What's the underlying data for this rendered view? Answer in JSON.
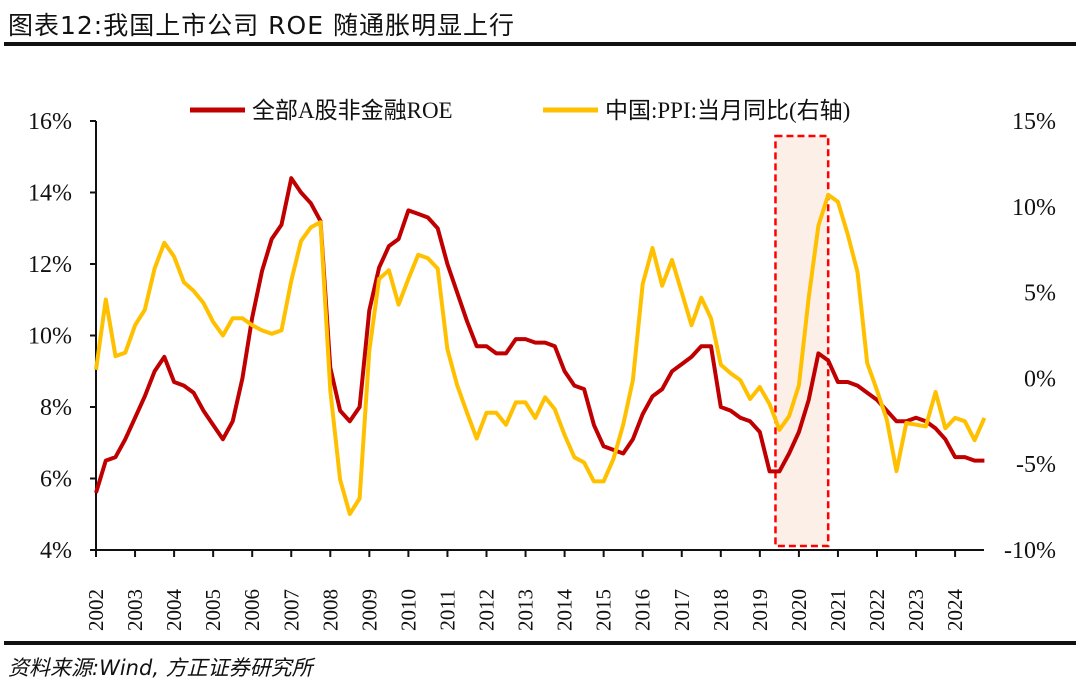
{
  "header": {
    "title": "图表12:我国上市公司 ROE 随通胀明显上行"
  },
  "footer": {
    "source": "资料来源:Wind, 方正证券研究所"
  },
  "chart_data": {
    "type": "line",
    "title": "图表12:我国上市公司 ROE 随通胀明显上行",
    "xlabel": "",
    "ylabel": "",
    "x_ticks": [
      "2002",
      "2003",
      "2004",
      "2005",
      "2006",
      "2007",
      "2008",
      "2009",
      "2010",
      "2011",
      "2012",
      "2013",
      "2014",
      "2015",
      "2016",
      "2017",
      "2018",
      "2019",
      "2020",
      "2021",
      "2022",
      "2023",
      "2024"
    ],
    "left_axis": {
      "ylim": [
        4,
        16
      ],
      "ticks": [
        "4%",
        "6%",
        "8%",
        "10%",
        "12%",
        "14%",
        "16%"
      ],
      "tick_values": [
        4,
        6,
        8,
        10,
        12,
        14,
        16
      ]
    },
    "right_axis": {
      "ylim": [
        -10,
        15
      ],
      "ticks": [
        "-10%",
        "-5%",
        "0%",
        "5%",
        "10%",
        "15%"
      ],
      "tick_values": [
        -10,
        -5,
        0,
        5,
        10,
        15
      ]
    },
    "x_start": 2002.0,
    "x_step": 0.25,
    "legend_position": "top",
    "series": [
      {
        "name": "全部A股非金融ROE",
        "axis": "left",
        "color": "#C00000",
        "values": [
          5.6,
          6.5,
          6.6,
          7.1,
          7.7,
          8.3,
          9.0,
          9.4,
          8.7,
          8.6,
          8.4,
          7.9,
          7.5,
          7.1,
          7.6,
          8.8,
          10.5,
          11.8,
          12.7,
          13.1,
          14.4,
          14.0,
          13.7,
          13.2,
          9.1,
          7.9,
          7.6,
          8.0,
          10.7,
          11.9,
          12.5,
          12.7,
          13.5,
          13.4,
          13.3,
          13.0,
          12.0,
          11.2,
          10.4,
          9.7,
          9.7,
          9.5,
          9.5,
          9.9,
          9.9,
          9.8,
          9.8,
          9.7,
          9.0,
          8.6,
          8.5,
          7.5,
          6.9,
          6.8,
          6.7,
          7.1,
          7.8,
          8.3,
          8.5,
          9.0,
          9.2,
          9.4,
          9.7,
          9.7,
          8.0,
          7.9,
          7.7,
          7.6,
          7.3,
          6.2,
          6.2,
          6.7,
          7.3,
          8.2,
          9.5,
          9.3,
          8.7,
          8.7,
          8.6,
          8.4,
          8.2,
          7.9,
          7.6,
          7.6,
          7.7,
          7.6,
          7.4,
          7.1,
          6.6,
          6.6,
          6.5,
          6.5
        ]
      },
      {
        "name": "中国:PPI:当月同比(右轴)",
        "axis": "right",
        "color": "#FFC000",
        "values": [
          0.5,
          4.6,
          1.3,
          1.5,
          3.1,
          4.0,
          6.4,
          7.9,
          7.1,
          5.6,
          5.1,
          4.4,
          3.3,
          2.5,
          3.5,
          3.5,
          3.1,
          2.8,
          2.6,
          2.8,
          5.7,
          8.0,
          8.8,
          9.1,
          -0.7,
          -5.9,
          -7.9,
          -7.0,
          1.6,
          5.8,
          6.3,
          4.3,
          5.8,
          7.2,
          7.0,
          6.4,
          1.7,
          -0.4,
          -2.0,
          -3.5,
          -2.0,
          -2.0,
          -2.7,
          -1.4,
          -1.4,
          -2.3,
          -1.1,
          -1.8,
          -3.3,
          -4.6,
          -4.9,
          -6.0,
          -6.0,
          -4.7,
          -2.7,
          -0.1,
          5.5,
          7.6,
          5.4,
          6.9,
          5.0,
          3.1,
          4.7,
          3.5,
          0.8,
          0.3,
          -0.1,
          -1.2,
          -0.5,
          -1.5,
          -3.0,
          -2.2,
          -0.4,
          4.7,
          8.9,
          10.7,
          10.3,
          8.4,
          6.2,
          0.9,
          -0.7,
          -2.4,
          -5.4,
          -2.6,
          -2.7,
          -2.8,
          -0.8,
          -2.9,
          -2.3,
          -2.5,
          -3.6,
          -2.3
        ]
      }
    ],
    "legend": [
      "全部A股非金融ROE",
      "中国:PPI:当月同比(右轴)"
    ],
    "annotations": [
      {
        "type": "highlight-box",
        "x_range": [
          2019.4,
          2020.75
        ],
        "fill": "#FBEFE8",
        "stroke": "#FF0000",
        "style": "dashed"
      }
    ]
  }
}
